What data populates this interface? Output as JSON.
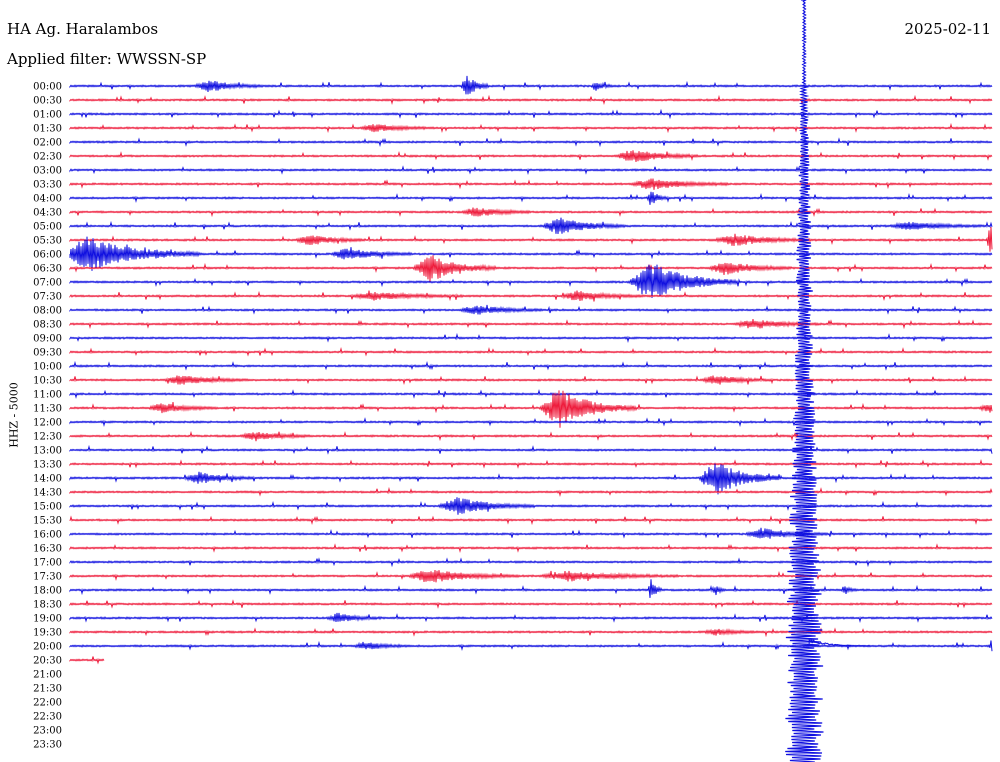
{
  "header": {
    "station": "HA Ag. Haralambos",
    "date": "2025-02-11",
    "filter_label": "Applied filter: WWSSN-SP"
  },
  "channel_label": "HHZ - 5000",
  "colors": {
    "even_trace": "#1010e0",
    "odd_trace": "#ee1c3c",
    "background": "#ffffff",
    "text": "#000000"
  },
  "time_labels": [
    "00:00",
    "00:30",
    "01:00",
    "01:30",
    "02:00",
    "02:30",
    "03:00",
    "03:30",
    "04:00",
    "04:30",
    "05:00",
    "05:30",
    "06:00",
    "06:30",
    "07:00",
    "07:30",
    "08:00",
    "08:30",
    "09:00",
    "09:30",
    "10:00",
    "10:30",
    "11:00",
    "11:30",
    "12:00",
    "12:30",
    "13:00",
    "13:30",
    "14:00",
    "14:30",
    "15:00",
    "15:30",
    "16:00",
    "16:30",
    "17:00",
    "17:30",
    "18:00",
    "18:30",
    "19:00",
    "19:30",
    "20:00",
    "20:30",
    "21:00",
    "21:30",
    "22:00",
    "22:30",
    "23:00",
    "23:30"
  ],
  "traces_recorded": 42,
  "events": [
    {
      "row": 0,
      "x": 0.15,
      "amp": 6,
      "width": 0.05
    },
    {
      "row": 0,
      "x": 0.43,
      "amp": 12,
      "width": 0.02
    },
    {
      "row": 0,
      "x": 0.57,
      "amp": 5,
      "width": 0.015
    },
    {
      "row": 3,
      "x": 0.33,
      "amp": 4,
      "width": 0.05
    },
    {
      "row": 5,
      "x": 0.61,
      "amp": 7,
      "width": 0.06
    },
    {
      "row": 7,
      "x": 0.63,
      "amp": 6,
      "width": 0.07
    },
    {
      "row": 8,
      "x": 0.63,
      "amp": 8,
      "width": 0.015
    },
    {
      "row": 9,
      "x": 0.44,
      "amp": 5,
      "width": 0.05
    },
    {
      "row": 10,
      "x": 0.53,
      "amp": 9,
      "width": 0.06
    },
    {
      "row": 10,
      "x": 0.91,
      "amp": 4,
      "width": 0.07
    },
    {
      "row": 11,
      "x": 0.26,
      "amp": 6,
      "width": 0.05
    },
    {
      "row": 11,
      "x": 0.72,
      "amp": 6,
      "width": 0.07
    },
    {
      "row": 11,
      "x": 1.0,
      "amp": 20,
      "width": 0.02
    },
    {
      "row": 12,
      "x": 0.02,
      "amp": 18,
      "width": 0.1
    },
    {
      "row": 12,
      "x": 0.3,
      "amp": 6,
      "width": 0.06
    },
    {
      "row": 13,
      "x": 0.39,
      "amp": 14,
      "width": 0.06
    },
    {
      "row": 13,
      "x": 0.71,
      "amp": 7,
      "width": 0.06
    },
    {
      "row": 14,
      "x": 0.63,
      "amp": 20,
      "width": 0.08
    },
    {
      "row": 15,
      "x": 0.33,
      "amp": 4,
      "width": 0.08
    },
    {
      "row": 15,
      "x": 0.55,
      "amp": 5,
      "width": 0.06
    },
    {
      "row": 16,
      "x": 0.44,
      "amp": 5,
      "width": 0.06
    },
    {
      "row": 17,
      "x": 0.74,
      "amp": 5,
      "width": 0.06
    },
    {
      "row": 21,
      "x": 0.12,
      "amp": 5,
      "width": 0.06
    },
    {
      "row": 21,
      "x": 0.7,
      "amp": 5,
      "width": 0.05
    },
    {
      "row": 23,
      "x": 0.53,
      "amp": 20,
      "width": 0.07
    },
    {
      "row": 23,
      "x": 0.1,
      "amp": 5,
      "width": 0.05
    },
    {
      "row": 23,
      "x": 1.0,
      "amp": 5,
      "width": 0.05
    },
    {
      "row": 25,
      "x": 0.2,
      "amp": 5,
      "width": 0.05
    },
    {
      "row": 28,
      "x": 0.14,
      "amp": 6,
      "width": 0.05
    },
    {
      "row": 28,
      "x": 0.7,
      "amp": 18,
      "width": 0.06
    },
    {
      "row": 30,
      "x": 0.42,
      "amp": 9,
      "width": 0.07
    },
    {
      "row": 32,
      "x": 0.75,
      "amp": 6,
      "width": 0.06
    },
    {
      "row": 35,
      "x": 0.39,
      "amp": 7,
      "width": 0.08
    },
    {
      "row": 35,
      "x": 0.54,
      "amp": 5,
      "width": 0.1
    },
    {
      "row": 36,
      "x": 0.63,
      "amp": 12,
      "width": 0.01
    },
    {
      "row": 36,
      "x": 0.7,
      "amp": 5,
      "width": 0.01
    },
    {
      "row": 36,
      "x": 0.84,
      "amp": 5,
      "width": 0.01
    },
    {
      "row": 38,
      "x": 0.29,
      "amp": 5,
      "width": 0.04
    },
    {
      "row": 39,
      "x": 0.7,
      "amp": 3,
      "width": 0.04
    },
    {
      "row": 40,
      "x": 0.32,
      "amp": 4,
      "width": 0.04
    },
    {
      "row": 40,
      "x": 1.0,
      "amp": 8,
      "width": 0.01
    }
  ],
  "big_event": {
    "x": 0.793,
    "start_row": 0,
    "end_row": 47,
    "coda_row": 40
  }
}
